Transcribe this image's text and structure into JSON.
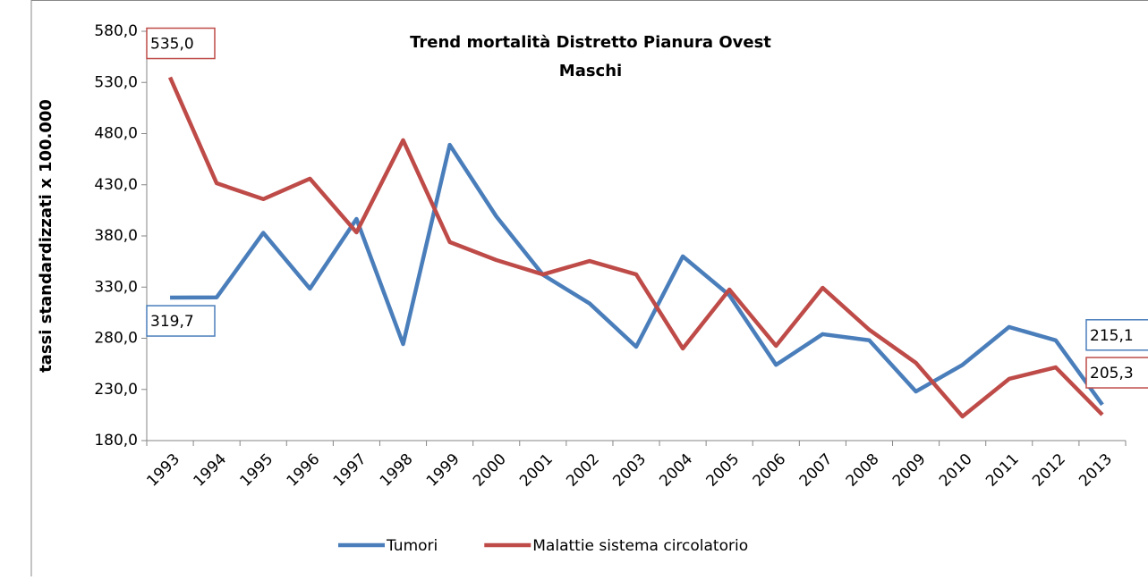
{
  "chart_data": {
    "type": "line",
    "title": [
      "Trend mortalità Distretto  Pianura Ovest",
      "Maschi"
    ],
    "y_label": "tassi standardizzati x 100.000",
    "categories": [
      "1993",
      "1994",
      "1995",
      "1996",
      "1997",
      "1998",
      "1999",
      "2000",
      "2001",
      "2002",
      "2003",
      "2004",
      "2005",
      "2006",
      "2007",
      "2008",
      "2009",
      "2010",
      "2011",
      "2012",
      "2013"
    ],
    "series": [
      {
        "name": "Tumori",
        "color": "#4a7ebb",
        "values": [
          319.7,
          320,
          383,
          328.5,
          396.6,
          274.3,
          469,
          399,
          342,
          314,
          271.7,
          360,
          322,
          254,
          284,
          278,
          228,
          254,
          291,
          278,
          215.1
        ],
        "value_labels": [
          "319,7",
          null,
          null,
          null,
          null,
          null,
          null,
          null,
          null,
          null,
          null,
          null,
          null,
          null,
          null,
          null,
          null,
          null,
          null,
          null,
          "215,1"
        ]
      },
      {
        "name": "Malattie sistema circolatorio",
        "color": "#be4b48",
        "values": [
          535.0,
          431.5,
          416,
          436,
          383.5,
          473.5,
          374,
          356.4,
          342.4,
          355.5,
          342.4,
          270,
          327.6,
          272.6,
          329.3,
          288.3,
          256,
          203.6,
          240.3,
          251.6,
          205.3
        ],
        "value_labels": [
          "535,0",
          null,
          null,
          null,
          null,
          null,
          null,
          null,
          null,
          null,
          null,
          null,
          null,
          null,
          null,
          null,
          null,
          null,
          null,
          null,
          "205,3"
        ]
      }
    ],
    "ylim": [
      180,
      580
    ],
    "yticks": [
      {
        "value": 180,
        "label": "180,0"
      },
      {
        "value": 230,
        "label": "230,0"
      },
      {
        "value": 280,
        "label": "280,0"
      },
      {
        "value": 330,
        "label": "330,0"
      },
      {
        "value": 380,
        "label": "380,0"
      },
      {
        "value": 430,
        "label": "430,0"
      },
      {
        "value": 480,
        "label": "480,0"
      },
      {
        "value": 530,
        "label": "530,0"
      },
      {
        "value": 580,
        "label": "580,0"
      }
    ],
    "grid": false,
    "legend": "bottom"
  }
}
